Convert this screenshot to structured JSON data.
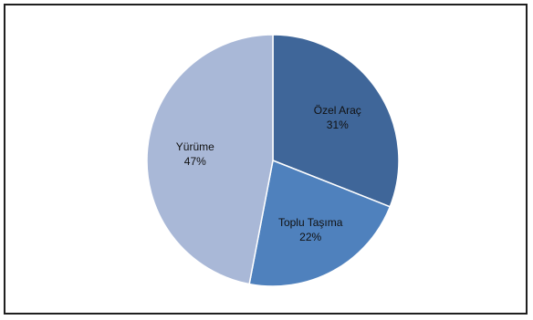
{
  "chart_data": {
    "type": "pie",
    "categories": [
      "Özel Araç",
      "Toplu Taşıma",
      "Yürüme"
    ],
    "values": [
      31,
      22,
      47
    ],
    "labels": [
      "31%",
      "22%",
      "47%"
    ],
    "colors": [
      "#3f6699",
      "#4f81bd",
      "#a9b8d7"
    ],
    "title": "",
    "legend": "none"
  }
}
